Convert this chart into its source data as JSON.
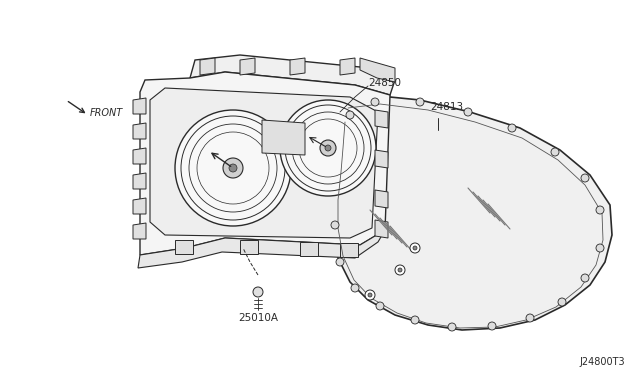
{
  "background_color": "#ffffff",
  "line_color": "#2a2a2a",
  "text_color": "#2a2a2a",
  "diagram_id": "J24800T3",
  "labels": {
    "front": "FRONT",
    "part1": "24850",
    "part2": "24813",
    "part3": "25010A"
  },
  "figsize": [
    6.4,
    3.72
  ],
  "dpi": 100,
  "xlim": [
    0,
    640
  ],
  "ylim": [
    0,
    372
  ]
}
